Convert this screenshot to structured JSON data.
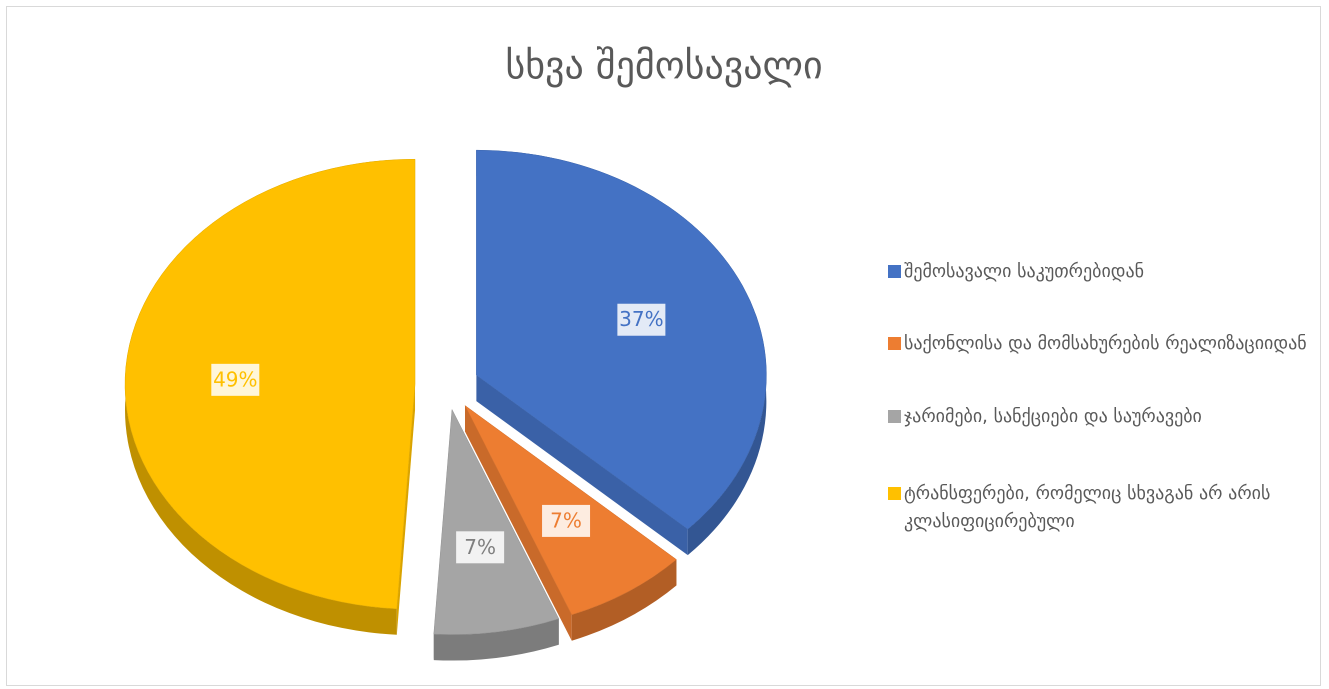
{
  "chart_data": {
    "type": "pie",
    "title": "სხვა შემოსავალი",
    "categories": [
      "შემოსავალი საკუთრებიდან",
      "საქონლისა და მომსახურების რეალიზაციიდან",
      "ჯარიმები, სანქციები და საურავები",
      "ტრანსფერები, რომელიც სხვაგან არ არის კლასიფიცირებული"
    ],
    "values": [
      37,
      7,
      7,
      49
    ],
    "value_labels": [
      "37%",
      "7%",
      "7%",
      "49%"
    ],
    "colors": [
      "#4472c4",
      "#ed7d31",
      "#a5a5a5",
      "#ffc000"
    ],
    "legend": "right"
  }
}
